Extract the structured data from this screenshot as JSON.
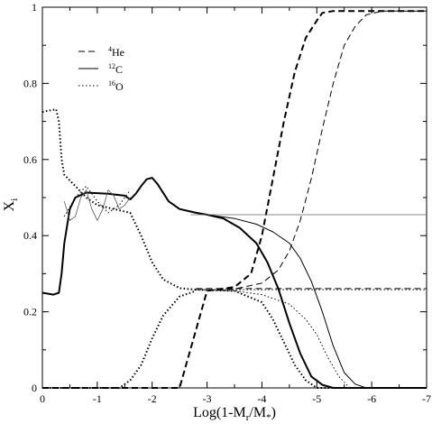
{
  "chart_data": {
    "type": "line",
    "xlabel": "Log(1-M_r/M_*)",
    "ylabel": "X_i",
    "xlim": [
      0,
      -7
    ],
    "ylim": [
      0,
      1
    ],
    "x_ticks": [
      0,
      -1,
      -2,
      -3,
      -4,
      -5,
      -6,
      -7
    ],
    "y_ticks": [
      0,
      0.2,
      0.4,
      0.6,
      0.8,
      1
    ],
    "x_tick_labels": [
      "0",
      "-1",
      "-2",
      "-3",
      "-4",
      "-5",
      "-6",
      "-7"
    ],
    "y_tick_labels": [
      "0",
      "0.2",
      "0.4",
      "0.6",
      "0.8",
      "1"
    ],
    "grid": false,
    "legend_position": "top-left",
    "legend": [
      {
        "label_sup": "4",
        "label": "He",
        "style": "dashed"
      },
      {
        "label_sup": "12",
        "label": "C",
        "style": "solid"
      },
      {
        "label_sup": "16",
        "label": "O",
        "style": "dotted"
      }
    ],
    "series": [
      {
        "element": "He",
        "model": "thick",
        "style": "dashed",
        "width": 2.0,
        "x": [
          0,
          -2.5,
          -3.0,
          -3.5,
          -3.8,
          -4.0,
          -4.2,
          -4.4,
          -4.6,
          -4.8,
          -5.0,
          -5.1,
          -5.3,
          -5.6,
          -7
        ],
        "y": [
          0,
          0,
          0.255,
          0.265,
          0.3,
          0.4,
          0.55,
          0.7,
          0.83,
          0.92,
          0.965,
          0.985,
          0.99,
          0.99,
          0.99
        ]
      },
      {
        "element": "He",
        "model": "thin",
        "style": "dashed",
        "width": 1.0,
        "x": [
          0,
          -2.5,
          -3.0,
          -3.5,
          -4.0,
          -4.3,
          -4.5,
          -4.7,
          -4.9,
          -5.1,
          -5.3,
          -5.5,
          -5.7,
          -5.9,
          -6.2,
          -7
        ],
        "y": [
          0,
          0,
          0.255,
          0.26,
          0.275,
          0.31,
          0.36,
          0.44,
          0.55,
          0.68,
          0.8,
          0.9,
          0.95,
          0.98,
          0.99,
          0.99
        ]
      },
      {
        "element": "He/O",
        "model": "thick",
        "style": "dotted",
        "width": 2.0,
        "x": [
          0,
          -0.1,
          -0.25,
          -0.3,
          -0.35,
          -0.4,
          -0.6,
          -0.8,
          -1.0,
          -1.3,
          -1.6,
          -1.8,
          -2.0,
          -2.2,
          -2.5,
          -2.8,
          -3.0,
          -3.5,
          -4.0,
          -4.2,
          -4.4,
          -4.6,
          -4.8,
          -5.0,
          -7
        ],
        "y": [
          0.725,
          0.728,
          0.732,
          0.7,
          0.6,
          0.56,
          0.53,
          0.5,
          0.48,
          0.47,
          0.46,
          0.4,
          0.33,
          0.285,
          0.262,
          0.258,
          0.257,
          0.255,
          0.225,
          0.18,
          0.12,
          0.06,
          0.02,
          0.0,
          0.0
        ]
      },
      {
        "element": "O",
        "model": "thin",
        "style": "dotted",
        "width": 1.0,
        "x": [
          -2.8,
          -3.0,
          -3.5,
          -4.0,
          -4.5,
          -4.8,
          -5.0,
          -5.2,
          -5.4,
          -5.6,
          -7
        ],
        "y": [
          0.258,
          0.257,
          0.255,
          0.245,
          0.22,
          0.18,
          0.14,
          0.08,
          0.03,
          0.0,
          0.0
        ]
      },
      {
        "element": "He flat",
        "model": "thin",
        "style": "dashed",
        "width": 1.0,
        "x": [
          -2.8,
          -7
        ],
        "y": [
          0.261,
          0.261
        ]
      },
      {
        "element": "O flat",
        "model": "thin",
        "style": "dotted",
        "width": 1.0,
        "x": [
          -2.8,
          -7
        ],
        "y": [
          0.258,
          0.258
        ]
      },
      {
        "element": "O rise",
        "model": "thick",
        "style": "dotted",
        "width": 2.0,
        "x": [
          0,
          -1.4,
          -1.6,
          -1.8,
          -2.0,
          -2.2,
          -2.5,
          -2.8
        ],
        "y": [
          0,
          0,
          0.02,
          0.06,
          0.13,
          0.19,
          0.24,
          0.255
        ]
      },
      {
        "element": "C",
        "model": "thick",
        "style": "solid",
        "width": 2.0,
        "x": [
          0,
          -0.2,
          -0.3,
          -0.35,
          -0.4,
          -0.5,
          -0.6,
          -0.8,
          -1.2,
          -1.5,
          -1.6,
          -1.7,
          -1.8,
          -1.9,
          -2.0,
          -2.1,
          -2.3,
          -2.5,
          -2.8,
          -3.0,
          -3.3,
          -3.6,
          -3.9,
          -4.1,
          -4.3,
          -4.5,
          -4.7,
          -4.9,
          -5.1,
          -5.3,
          -7
        ],
        "y": [
          0.25,
          0.245,
          0.25,
          0.3,
          0.38,
          0.47,
          0.5,
          0.513,
          0.51,
          0.505,
          0.495,
          0.51,
          0.53,
          0.548,
          0.552,
          0.535,
          0.49,
          0.47,
          0.46,
          0.455,
          0.445,
          0.42,
          0.38,
          0.33,
          0.26,
          0.17,
          0.09,
          0.03,
          0.008,
          0.0,
          0.0
        ]
      },
      {
        "element": "C",
        "model": "thin",
        "style": "solid",
        "width": 1.0,
        "x": [
          -2.5,
          -3.0,
          -3.5,
          -3.9,
          -4.2,
          -4.5,
          -4.7,
          -4.9,
          -5.1,
          -5.3,
          -5.5,
          -5.7,
          -5.9,
          -7
        ],
        "y": [
          0.47,
          0.455,
          0.445,
          0.43,
          0.41,
          0.38,
          0.34,
          0.28,
          0.2,
          0.11,
          0.04,
          0.01,
          0.0,
          0.0
        ]
      },
      {
        "element": "C flat",
        "model": "thin",
        "style": "solid",
        "width": 0.8,
        "color": "#666666",
        "x": [
          -2.7,
          -7
        ],
        "y": [
          0.455,
          0.455
        ]
      },
      {
        "element": "C oscillation",
        "model": "thin",
        "style": "solid",
        "width": 0.8,
        "color": "#555555",
        "x": [
          -0.4,
          -0.5,
          -0.6,
          -0.7,
          -0.8,
          -0.9,
          -1.0,
          -1.1,
          -1.2,
          -1.3,
          -1.4,
          -1.5,
          -1.6
        ],
        "y": [
          0.49,
          0.44,
          0.45,
          0.5,
          0.52,
          0.47,
          0.44,
          0.47,
          0.52,
          0.505,
          0.47,
          0.48,
          0.5
        ]
      },
      {
        "element": "O oscillation",
        "model": "thin",
        "style": "dotted",
        "width": 1.0,
        "x": [
          -0.4,
          -0.6,
          -0.8,
          -1.0,
          -1.2,
          -1.4,
          -1.6
        ],
        "y": [
          0.45,
          0.5,
          0.53,
          0.49,
          0.46,
          0.48,
          0.52
        ]
      }
    ]
  }
}
